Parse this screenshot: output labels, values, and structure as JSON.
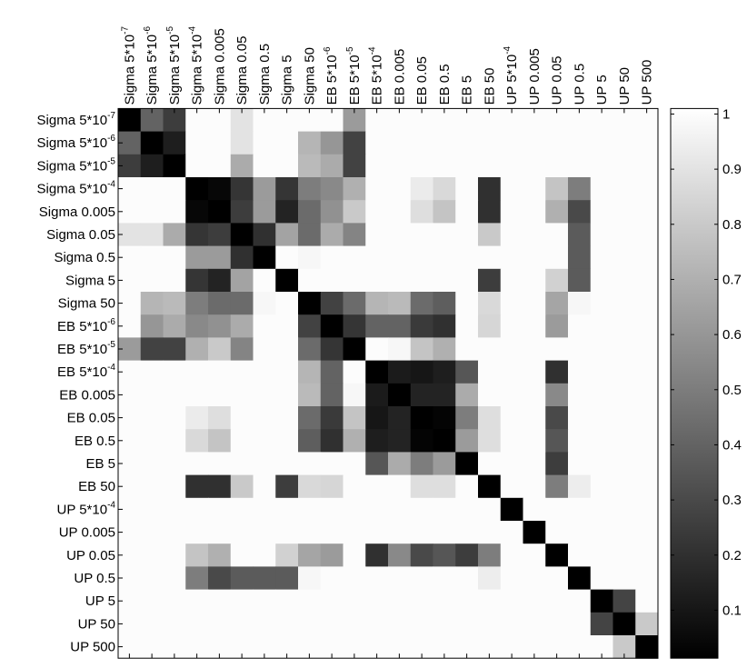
{
  "chart_data": {
    "type": "heatmap",
    "title": "",
    "xlabel": "",
    "ylabel": "",
    "colormap": "gray",
    "color_low": "#000000",
    "color_high": "#ffffff",
    "clim": [
      0.013,
      1.01
    ],
    "labels": [
      "Sigma 5*10^-7",
      "Sigma 5*10^-6",
      "Sigma 5*10^-5",
      "Sigma 5*10^-4",
      "Sigma 0.005",
      "Sigma 0.05",
      "Sigma 0.5",
      "Sigma 5",
      "Sigma 50",
      "EB 5*10^-6",
      "EB 5*10^-5",
      "EB 5*10^-4",
      "EB 0.005",
      "EB 0.05",
      "EB 0.5",
      "EB 5",
      "EB 50",
      "UP 5*10^-4",
      "UP 0.005",
      "UP 0.05",
      "UP 0.5",
      "UP 5",
      "UP 50",
      "UP 500"
    ],
    "colorbar_ticks": [
      0.1,
      0.2,
      0.3,
      0.4,
      0.5,
      0.6,
      0.7,
      0.8,
      0.9,
      1
    ],
    "colorbar_tick_labels": [
      "0.1",
      "0.2",
      "0.3",
      "0.4",
      "0.5",
      "0.6",
      "0.7",
      "0.8",
      "0.9",
      "1"
    ],
    "matrix": [
      [
        0,
        0.4,
        0.25,
        1,
        1,
        0.9,
        1,
        1,
        1,
        1,
        0.62,
        1,
        1,
        1,
        1,
        1,
        1,
        1,
        1,
        1,
        1,
        1,
        1,
        1
      ],
      [
        0.4,
        0,
        0.13,
        1,
        1,
        0.9,
        1,
        1,
        0.72,
        0.6,
        0.27,
        1,
        1,
        1,
        1,
        1,
        1,
        1,
        1,
        1,
        1,
        1,
        1,
        1
      ],
      [
        0.25,
        0.13,
        0,
        1,
        1,
        0.68,
        1,
        1,
        0.74,
        0.68,
        0.27,
        1,
        1,
        1,
        1,
        1,
        1,
        1,
        1,
        1,
        1,
        1,
        1,
        1
      ],
      [
        1,
        1,
        1,
        0,
        0.04,
        0.22,
        0.62,
        0.22,
        0.5,
        0.55,
        0.7,
        1,
        1,
        0.93,
        0.86,
        1,
        0.2,
        1,
        1,
        0.78,
        0.5,
        1,
        1,
        1
      ],
      [
        1,
        1,
        1,
        0.04,
        0,
        0.25,
        0.62,
        0.15,
        0.43,
        0.58,
        0.8,
        1,
        1,
        0.88,
        0.78,
        1,
        0.2,
        1,
        1,
        0.7,
        0.3,
        1,
        1,
        1
      ],
      [
        0.9,
        0.9,
        0.68,
        0.22,
        0.25,
        0,
        0.2,
        0.65,
        0.43,
        0.68,
        0.53,
        1,
        1,
        1,
        1,
        1,
        0.8,
        1,
        1,
        1,
        0.37,
        1,
        1,
        1
      ],
      [
        1,
        1,
        1,
        0.62,
        0.62,
        0.2,
        0,
        1,
        0.98,
        1,
        1,
        1,
        1,
        1,
        1,
        1,
        1,
        1,
        1,
        1,
        0.37,
        1,
        1,
        1
      ],
      [
        1,
        1,
        1,
        0.22,
        0.15,
        0.65,
        1,
        0,
        1,
        1,
        1,
        1,
        1,
        1,
        1,
        1,
        0.25,
        1,
        1,
        0.83,
        0.37,
        1,
        1,
        1
      ],
      [
        1,
        0.72,
        0.74,
        0.5,
        0.43,
        0.43,
        0.98,
        1,
        0,
        0.27,
        0.43,
        0.72,
        0.74,
        0.43,
        0.38,
        1,
        0.86,
        1,
        1,
        0.66,
        0.98,
        1,
        1,
        1
      ],
      [
        1,
        0.6,
        0.68,
        0.55,
        0.58,
        0.68,
        1,
        1,
        0.27,
        0,
        0.22,
        0.4,
        0.4,
        0.24,
        0.2,
        1,
        0.85,
        1,
        1,
        0.62,
        1,
        1,
        1,
        1
      ],
      [
        0.62,
        0.27,
        0.27,
        0.7,
        0.8,
        0.53,
        1,
        1,
        0.43,
        0.22,
        0,
        1,
        0.98,
        0.78,
        0.7,
        1,
        1,
        1,
        1,
        1,
        1,
        1,
        1,
        1
      ],
      [
        1,
        1,
        1,
        1,
        1,
        1,
        1,
        1,
        0.72,
        0.4,
        1,
        0,
        0.12,
        0.1,
        0.13,
        0.35,
        1,
        1,
        1,
        0.2,
        1,
        1,
        1,
        1
      ],
      [
        1,
        1,
        1,
        1,
        1,
        1,
        1,
        1,
        0.74,
        0.4,
        0.98,
        0.12,
        0,
        0.15,
        0.15,
        0.68,
        1,
        1,
        1,
        0.55,
        1,
        1,
        1,
        1
      ],
      [
        1,
        1,
        1,
        0.93,
        0.88,
        1,
        1,
        1,
        0.43,
        0.24,
        0.78,
        0.1,
        0.15,
        0,
        0.03,
        0.5,
        0.88,
        1,
        1,
        0.3,
        1,
        1,
        1,
        1
      ],
      [
        1,
        1,
        1,
        0.86,
        0.78,
        1,
        1,
        1,
        0.38,
        0.2,
        0.7,
        0.13,
        0.15,
        0.03,
        0,
        0.62,
        0.88,
        1,
        1,
        0.35,
        1,
        1,
        1,
        1
      ],
      [
        1,
        1,
        1,
        1,
        1,
        1,
        1,
        1,
        1,
        1,
        1,
        0.35,
        0.68,
        0.5,
        0.62,
        0,
        1,
        1,
        1,
        0.25,
        1,
        1,
        1,
        1
      ],
      [
        1,
        1,
        1,
        0.2,
        0.2,
        0.8,
        1,
        0.25,
        0.86,
        0.85,
        1,
        1,
        1,
        0.88,
        0.88,
        1,
        0,
        1,
        1,
        0.5,
        0.94,
        1,
        1,
        1
      ],
      [
        1,
        1,
        1,
        1,
        1,
        1,
        1,
        1,
        1,
        1,
        1,
        1,
        1,
        1,
        1,
        1,
        1,
        0,
        1,
        1,
        1,
        1,
        1,
        1
      ],
      [
        1,
        1,
        1,
        1,
        1,
        1,
        1,
        1,
        1,
        1,
        1,
        1,
        1,
        1,
        1,
        1,
        1,
        1,
        0,
        1,
        1,
        1,
        1,
        1
      ],
      [
        1,
        1,
        1,
        0.78,
        0.7,
        1,
        1,
        0.83,
        0.66,
        0.62,
        1,
        0.2,
        0.55,
        0.3,
        0.35,
        0.25,
        0.5,
        1,
        1,
        0,
        1,
        1,
        1,
        1
      ],
      [
        1,
        1,
        1,
        0.5,
        0.3,
        0.37,
        0.37,
        0.37,
        0.98,
        1,
        1,
        1,
        1,
        1,
        1,
        1,
        0.94,
        1,
        1,
        1,
        0,
        1,
        1,
        1
      ],
      [
        1,
        1,
        1,
        1,
        1,
        1,
        1,
        1,
        1,
        1,
        1,
        1,
        1,
        1,
        1,
        1,
        1,
        1,
        1,
        1,
        1,
        0,
        0.28,
        1
      ],
      [
        1,
        1,
        1,
        1,
        1,
        1,
        1,
        1,
        1,
        1,
        1,
        1,
        1,
        1,
        1,
        1,
        1,
        1,
        1,
        1,
        1,
        0.28,
        0,
        0.8
      ],
      [
        1,
        1,
        1,
        1,
        1,
        1,
        1,
        1,
        1,
        1,
        1,
        1,
        1,
        1,
        1,
        1,
        1,
        1,
        1,
        1,
        1,
        1,
        0.8,
        0
      ]
    ],
    "grid": false,
    "colorbar": "right"
  }
}
